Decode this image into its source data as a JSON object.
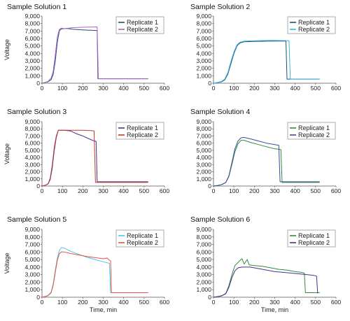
{
  "chart_data": [
    {
      "type": "line",
      "title": "Sample Solution 1",
      "xlabel": "",
      "ylabel": "Voltage",
      "xlim": [
        0,
        600
      ],
      "ylim": [
        0,
        9000
      ],
      "xticks": [
        0,
        100,
        200,
        300,
        400,
        500,
        600
      ],
      "yticks": [
        0,
        1000,
        2000,
        3000,
        4000,
        5000,
        6000,
        7000,
        8000,
        9000
      ],
      "ytick_labels": [
        "0",
        "1,000",
        "2,000",
        "3,000",
        "4,000",
        "5,000",
        "6,000",
        "7,000",
        "8,000",
        "9,000"
      ],
      "legend_position": "top-right",
      "series": [
        {
          "name": "Replicate 1",
          "color": "#1f4e79",
          "points": [
            [
              0,
              0
            ],
            [
              15,
              100
            ],
            [
              30,
              200
            ],
            [
              45,
              500
            ],
            [
              55,
              1200
            ],
            [
              65,
              3000
            ],
            [
              75,
              5500
            ],
            [
              85,
              7000
            ],
            [
              95,
              7300
            ],
            [
              105,
              7300
            ],
            [
              120,
              7350
            ],
            [
              150,
              7250
            ],
            [
              200,
              7150
            ],
            [
              270,
              7050
            ],
            [
              274,
              600
            ],
            [
              520,
              600
            ]
          ]
        },
        {
          "name": "Replicate 2",
          "color": "#b05fc4",
          "points": [
            [
              0,
              0
            ],
            [
              15,
              100
            ],
            [
              30,
              250
            ],
            [
              45,
              700
            ],
            [
              55,
              1600
            ],
            [
              65,
              3800
            ],
            [
              75,
              6200
            ],
            [
              85,
              7200
            ],
            [
              95,
              7400
            ],
            [
              110,
              7300
            ],
            [
              150,
              7450
            ],
            [
              200,
              7500
            ],
            [
              270,
              7550
            ],
            [
              276,
              600
            ],
            [
              520,
              600
            ]
          ]
        }
      ]
    },
    {
      "type": "line",
      "title": "Sample Solution 2",
      "xlabel": "",
      "ylabel": "",
      "xlim": [
        0,
        600
      ],
      "ylim": [
        0,
        9000
      ],
      "xticks": [
        0,
        100,
        200,
        300,
        400,
        500,
        600
      ],
      "yticks": [
        0,
        1000,
        2000,
        3000,
        4000,
        5000,
        6000,
        7000,
        8000,
        9000
      ],
      "ytick_labels": [
        "0",
        "1,000",
        "2,000",
        "3,000",
        "4,000",
        "5,000",
        "6,000",
        "7,000",
        "8,000",
        "9,000"
      ],
      "legend_position": "top-right",
      "series": [
        {
          "name": "Replicate 1",
          "color": "#1f4e79",
          "points": [
            [
              0,
              0
            ],
            [
              20,
              80
            ],
            [
              40,
              200
            ],
            [
              55,
              450
            ],
            [
              70,
              1200
            ],
            [
              85,
              2600
            ],
            [
              100,
              4000
            ],
            [
              115,
              5000
            ],
            [
              130,
              5400
            ],
            [
              150,
              5550
            ],
            [
              200,
              5600
            ],
            [
              300,
              5650
            ],
            [
              355,
              5650
            ],
            [
              360,
              550
            ],
            [
              520,
              550
            ]
          ]
        },
        {
          "name": "Replicate 2",
          "color": "#3bb5e0",
          "points": [
            [
              0,
              0
            ],
            [
              20,
              100
            ],
            [
              40,
              250
            ],
            [
              55,
              550
            ],
            [
              70,
              1400
            ],
            [
              85,
              2900
            ],
            [
              100,
              4200
            ],
            [
              115,
              5150
            ],
            [
              130,
              5500
            ],
            [
              150,
              5650
            ],
            [
              200,
              5700
            ],
            [
              300,
              5750
            ],
            [
              370,
              5700
            ],
            [
              376,
              550
            ],
            [
              520,
              550
            ]
          ]
        }
      ]
    },
    {
      "type": "line",
      "title": "Sample Solution 3",
      "xlabel": "",
      "ylabel": "Voltage",
      "xlim": [
        0,
        600
      ],
      "ylim": [
        0,
        9000
      ],
      "xticks": [
        0,
        100,
        200,
        300,
        400,
        500,
        600
      ],
      "yticks": [
        0,
        1000,
        2000,
        3000,
        4000,
        5000,
        6000,
        7000,
        8000,
        9000
      ],
      "ytick_labels": [
        "0",
        "1,000",
        "2,000",
        "3,000",
        "4,000",
        "5,000",
        "6,000",
        "7,000",
        "8,000",
        "9,000"
      ],
      "legend_position": "top-right",
      "series": [
        {
          "name": "Replicate 1",
          "color": "#4b2c8a",
          "points": [
            [
              0,
              0
            ],
            [
              15,
              100
            ],
            [
              30,
              300
            ],
            [
              40,
              900
            ],
            [
              50,
              2500
            ],
            [
              60,
              5000
            ],
            [
              70,
              6800
            ],
            [
              80,
              7800
            ],
            [
              110,
              7800
            ],
            [
              140,
              7700
            ],
            [
              170,
              7300
            ],
            [
              200,
              7000
            ],
            [
              230,
              6600
            ],
            [
              255,
              6300
            ],
            [
              265,
              6250
            ],
            [
              270,
              600
            ],
            [
              520,
              600
            ]
          ]
        },
        {
          "name": "Replicate 2",
          "color": "#c0392b",
          "points": [
            [
              0,
              0
            ],
            [
              15,
              100
            ],
            [
              30,
              350
            ],
            [
              40,
              1100
            ],
            [
              50,
              2900
            ],
            [
              60,
              5400
            ],
            [
              70,
              7000
            ],
            [
              80,
              7800
            ],
            [
              120,
              7800
            ],
            [
              160,
              7800
            ],
            [
              200,
              7800
            ],
            [
              240,
              7750
            ],
            [
              255,
              7700
            ],
            [
              262,
              500
            ],
            [
              520,
              500
            ]
          ]
        }
      ]
    },
    {
      "type": "line",
      "title": "Sample Solution 4",
      "xlabel": "",
      "ylabel": "",
      "xlim": [
        0,
        600
      ],
      "ylim": [
        0,
        9000
      ],
      "xticks": [
        0,
        100,
        200,
        300,
        400,
        500,
        600
      ],
      "yticks": [
        0,
        1000,
        2000,
        3000,
        4000,
        5000,
        6000,
        7000,
        8000,
        9000
      ],
      "ytick_labels": [
        "0",
        "1,000",
        "2,000",
        "3,000",
        "4,000",
        "5,000",
        "6,000",
        "7,000",
        "8,000",
        "9,000"
      ],
      "legend_position": "top-right",
      "series": [
        {
          "name": "Replicate 1",
          "color": "#2e8b3e",
          "points": [
            [
              0,
              0
            ],
            [
              20,
              80
            ],
            [
              40,
              200
            ],
            [
              60,
              500
            ],
            [
              75,
              1300
            ],
            [
              90,
              3000
            ],
            [
              105,
              4800
            ],
            [
              120,
              5900
            ],
            [
              135,
              6400
            ],
            [
              150,
              6400
            ],
            [
              180,
              6100
            ],
            [
              220,
              5800
            ],
            [
              260,
              5500
            ],
            [
              300,
              5200
            ],
            [
              330,
              5100
            ],
            [
              336,
              500
            ],
            [
              520,
              500
            ]
          ]
        },
        {
          "name": "Replicate 2",
          "color": "#3a4b9c",
          "points": [
            [
              0,
              0
            ],
            [
              20,
              80
            ],
            [
              40,
              200
            ],
            [
              60,
              500
            ],
            [
              75,
              1400
            ],
            [
              90,
              3300
            ],
            [
              105,
              5200
            ],
            [
              120,
              6300
            ],
            [
              135,
              6750
            ],
            [
              150,
              6800
            ],
            [
              180,
              6600
            ],
            [
              220,
              6300
            ],
            [
              260,
              6000
            ],
            [
              300,
              5800
            ],
            [
              320,
              5700
            ],
            [
              326,
              600
            ],
            [
              520,
              600
            ]
          ]
        }
      ]
    },
    {
      "type": "line",
      "title": "Sample Solution 5",
      "xlabel": "Time, min",
      "ylabel": "Voltage",
      "xlim": [
        0,
        600
      ],
      "ylim": [
        0,
        9000
      ],
      "xticks": [
        0,
        100,
        200,
        300,
        400,
        500,
        600
      ],
      "yticks": [
        0,
        1000,
        2000,
        3000,
        4000,
        5000,
        6000,
        7000,
        8000,
        9000
      ],
      "ytick_labels": [
        "0",
        "1,000",
        "2,000",
        "3,000",
        "4,000",
        "5,000",
        "6,000",
        "7,000",
        "8,000",
        "9,000"
      ],
      "legend_position": "top-right",
      "series": [
        {
          "name": "Replicate 1",
          "color": "#4fc3f7",
          "points": [
            [
              0,
              0
            ],
            [
              15,
              100
            ],
            [
              30,
              250
            ],
            [
              45,
              700
            ],
            [
              55,
              1800
            ],
            [
              65,
              3600
            ],
            [
              75,
              5200
            ],
            [
              85,
              6200
            ],
            [
              95,
              6600
            ],
            [
              110,
              6500
            ],
            [
              140,
              6100
            ],
            [
              180,
              5700
            ],
            [
              220,
              5300
            ],
            [
              260,
              5000
            ],
            [
              300,
              4700
            ],
            [
              330,
              4500
            ],
            [
              336,
              600
            ],
            [
              520,
              600
            ]
          ]
        },
        {
          "name": "Replicate 2",
          "color": "#e8553a",
          "points": [
            [
              0,
              0
            ],
            [
              15,
              80
            ],
            [
              30,
              200
            ],
            [
              45,
              600
            ],
            [
              55,
              1600
            ],
            [
              65,
              3300
            ],
            [
              75,
              4900
            ],
            [
              85,
              5800
            ],
            [
              95,
              6000
            ],
            [
              110,
              6000
            ],
            [
              140,
              5800
            ],
            [
              180,
              5600
            ],
            [
              220,
              5400
            ],
            [
              260,
              5250
            ],
            [
              300,
              5100
            ],
            [
              320,
              5200
            ],
            [
              330,
              4900
            ],
            [
              336,
              4800
            ],
            [
              340,
              600
            ],
            [
              520,
              600
            ]
          ]
        }
      ]
    },
    {
      "type": "line",
      "title": "Sample Solution 6",
      "xlabel": "Time, min",
      "ylabel": "",
      "xlim": [
        0,
        600
      ],
      "ylim": [
        0,
        9000
      ],
      "xticks": [
        0,
        100,
        200,
        300,
        400,
        500,
        600
      ],
      "yticks": [
        0,
        1000,
        2000,
        3000,
        4000,
        5000,
        6000,
        7000,
        8000,
        9000
      ],
      "ytick_labels": [
        "0",
        "1,000",
        "2,000",
        "3,000",
        "4,000",
        "5,000",
        "6,000",
        "7,000",
        "8,000",
        "9,000"
      ],
      "legend_position": "top-right",
      "series": [
        {
          "name": "Replicate 1",
          "color": "#2e8b3e",
          "points": [
            [
              0,
              0
            ],
            [
              20,
              80
            ],
            [
              40,
              200
            ],
            [
              60,
              500
            ],
            [
              75,
              1500
            ],
            [
              90,
              3000
            ],
            [
              105,
              4200
            ],
            [
              120,
              4600
            ],
            [
              130,
              4900
            ],
            [
              140,
              5100
            ],
            [
              150,
              4400
            ],
            [
              165,
              5000
            ],
            [
              175,
              4300
            ],
            [
              200,
              4200
            ],
            [
              240,
              4100
            ],
            [
              280,
              3900
            ],
            [
              320,
              3700
            ],
            [
              360,
              3600
            ],
            [
              400,
              3400
            ],
            [
              430,
              3300
            ],
            [
              445,
              3200
            ],
            [
              450,
              600
            ],
            [
              520,
              600
            ]
          ]
        },
        {
          "name": "Replicate 2",
          "color": "#4b2c8a",
          "points": [
            [
              0,
              0
            ],
            [
              20,
              80
            ],
            [
              40,
              180
            ],
            [
              60,
              450
            ],
            [
              75,
              1300
            ],
            [
              90,
              2600
            ],
            [
              105,
              3500
            ],
            [
              120,
              3900
            ],
            [
              140,
              4000
            ],
            [
              180,
              4000
            ],
            [
              220,
              3800
            ],
            [
              260,
              3600
            ],
            [
              300,
              3400
            ],
            [
              340,
              3300
            ],
            [
              380,
              3200
            ],
            [
              420,
              3100
            ],
            [
              460,
              3000
            ],
            [
              490,
              2900
            ],
            [
              505,
              2800
            ],
            [
              510,
              500
            ]
          ]
        }
      ]
    }
  ]
}
